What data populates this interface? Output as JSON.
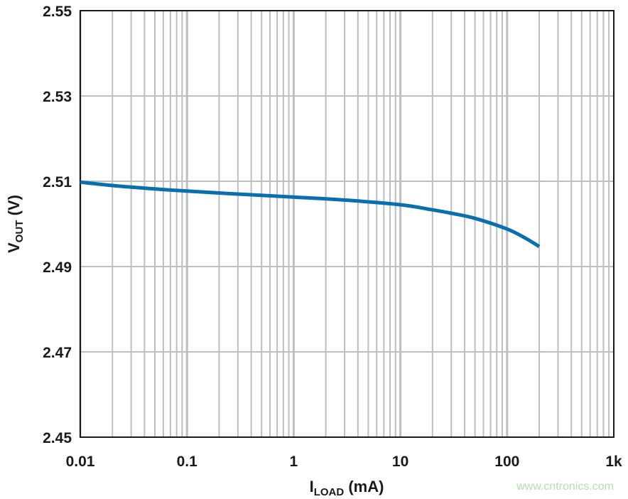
{
  "chart_data": {
    "type": "line",
    "title": "",
    "xlabel": {
      "main": "I",
      "sub": "LOAD",
      "unit": " (mA)"
    },
    "ylabel": {
      "main": "V",
      "sub": "OUT",
      "unit": " (V)"
    },
    "x_scale": "log",
    "xlim": [
      0.01,
      1000
    ],
    "ylim": [
      2.45,
      2.55
    ],
    "x_ticks": [
      0.01,
      0.1,
      1,
      10,
      100,
      1000
    ],
    "x_tick_labels": [
      "0.01",
      "0.1",
      "1",
      "10",
      "100",
      "1k"
    ],
    "y_ticks": [
      2.45,
      2.47,
      2.49,
      2.51,
      2.53,
      2.55
    ],
    "y_tick_labels": [
      "2.45",
      "2.47",
      "2.49",
      "2.51",
      "2.53",
      "2.55"
    ],
    "grid": true,
    "line_color": "#0a6fae",
    "grid_color": "#bdbec2",
    "series": [
      {
        "x": [
          0.01,
          0.02,
          0.05,
          0.1,
          0.3,
          1,
          3,
          10,
          20,
          30,
          50,
          100,
          150,
          200
        ],
        "y": [
          2.5098,
          2.509,
          2.5082,
          2.5077,
          2.507,
          2.5063,
          2.5056,
          2.5045,
          2.5033,
          2.5025,
          2.5013,
          2.4988,
          2.4966,
          2.4947
        ]
      }
    ]
  },
  "watermark": "www.cntronics.com"
}
